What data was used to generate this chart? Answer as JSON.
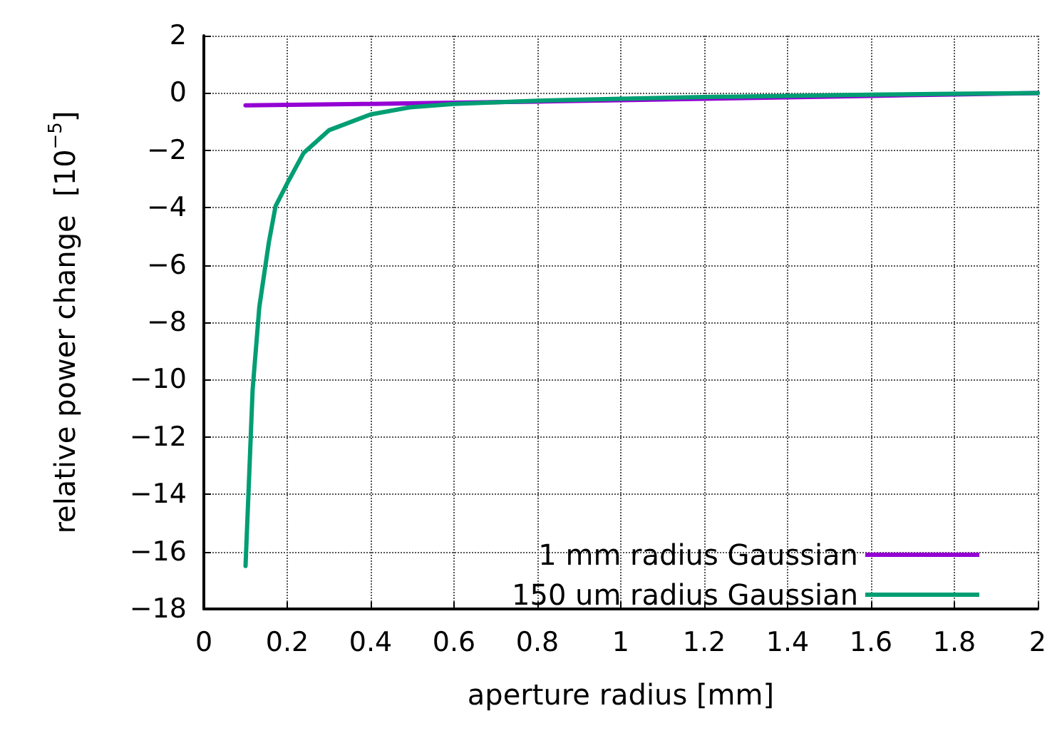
{
  "chart_data": {
    "type": "line",
    "xlabel": "aperture radius [mm]",
    "ylabel": "relative power change  [10$^{−5}$]",
    "xlim": [
      0,
      2
    ],
    "xticks": [
      0,
      0.2,
      0.4,
      0.6,
      0.8,
      1,
      1.2,
      1.4,
      1.6,
      1.8,
      2
    ],
    "ylim": [
      -18,
      2
    ],
    "yticks": [
      -18,
      -16,
      -14,
      -12,
      -10,
      -8,
      -6,
      -4,
      -2,
      0,
      2
    ],
    "grid": true,
    "legend": "bottom right",
    "marker": "none",
    "line_style": "solid",
    "series": [
      {
        "name": "1 mm radius Gaussian",
        "color": "#9400d3",
        "x": [
          0.1,
          0.4,
          0.6,
          0.8,
          1,
          1.2,
          1.4,
          1.6,
          1.8,
          2
        ],
        "values": [
          -0.43,
          -0.38,
          -0.34,
          -0.3,
          -0.25,
          -0.2,
          -0.15,
          -0.1,
          -0.05,
          0
        ]
      },
      {
        "name": "150 um radius Gaussian",
        "color": "#009e73",
        "x": [
          0.1,
          0.117,
          0.133,
          0.156,
          0.172,
          0.2,
          0.239,
          0.3,
          0.4,
          0.494,
          0.6,
          0.8,
          1,
          1.2,
          1.4,
          1.6,
          1.8,
          2
        ],
        "values": [
          -16.5,
          -10.35,
          -7.47,
          -5.2,
          -3.95,
          -3.15,
          -2.1,
          -1.3,
          -0.75,
          -0.5,
          -0.38,
          -0.27,
          -0.2,
          -0.14,
          -0.1,
          -0.06,
          -0.03,
          0
        ]
      }
    ]
  }
}
